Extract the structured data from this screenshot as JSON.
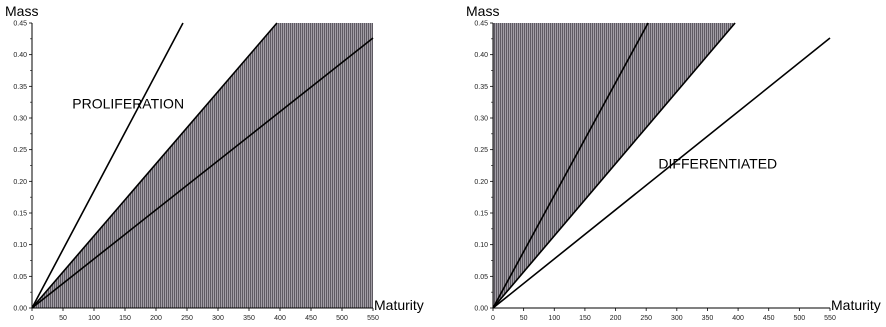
{
  "chart_data": [
    {
      "type": "area",
      "xlabel": "Maturity",
      "ylabel": "Mass",
      "xlim": [
        0,
        550
      ],
      "ylim": [
        0,
        0.45
      ],
      "x_ticks": [
        "0",
        "50",
        "100",
        "150",
        "200",
        "250",
        "300",
        "350",
        "400",
        "450",
        "500",
        "550"
      ],
      "y_ticks": [
        "0.00",
        "0.05",
        "0.10",
        "0.15",
        "0.20",
        "0.25",
        "0.30",
        "0.35",
        "0.40",
        "0.45"
      ],
      "shaded_region": "below",
      "shade_color": "#7c7880",
      "lines": [
        {
          "slope": 0.001848,
          "shade_boundary": false
        },
        {
          "slope": 0.001139,
          "shade_boundary": true
        },
        {
          "slope": 0.000775,
          "shade_boundary": false
        }
      ],
      "annotations": [
        {
          "text": "PROLIFERATION",
          "x": 65,
          "y": 0.315
        }
      ]
    },
    {
      "type": "area",
      "xlabel": "Maturity",
      "ylabel": "Mass",
      "xlim": [
        0,
        550
      ],
      "ylim": [
        0,
        0.45
      ],
      "x_ticks": [
        "0",
        "50",
        "100",
        "150",
        "200",
        "250",
        "300",
        "350",
        "400",
        "450",
        "500",
        "550"
      ],
      "y_ticks": [
        "0.00",
        "0.05",
        "0.10",
        "0.15",
        "0.20",
        "0.25",
        "0.30",
        "0.35",
        "0.40",
        "0.45"
      ],
      "shaded_region": "above",
      "shade_color": "#7c7880",
      "lines": [
        {
          "slope": 0.001778,
          "shade_boundary": false
        },
        {
          "slope": 0.001139,
          "shade_boundary": true
        },
        {
          "slope": 0.000775,
          "shade_boundary": false
        }
      ],
      "annotations": [
        {
          "text": "DIFFERENTIATED",
          "x": 270,
          "y": 0.22
        }
      ]
    }
  ]
}
